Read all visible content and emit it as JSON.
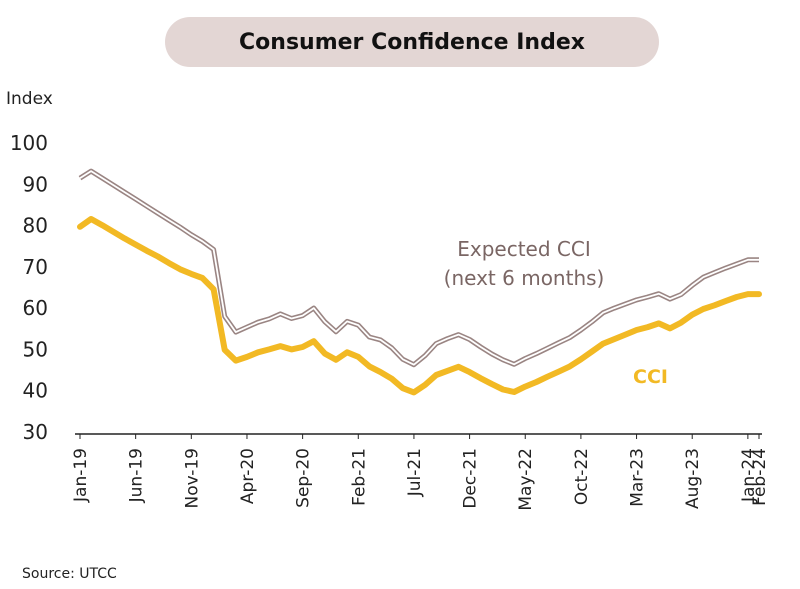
{
  "chart_data": {
    "type": "line",
    "title": "Consumer Confidence Index",
    "ylabel": "Index",
    "xlabel": "",
    "ylim": [
      30,
      100
    ],
    "yticks": [
      30,
      40,
      50,
      60,
      70,
      80,
      90,
      100
    ],
    "grid": false,
    "x_tick_labels": [
      "Jan-19",
      "Jun-19",
      "Nov-19",
      "Apr-20",
      "Sep-20",
      "Feb-21",
      "Jul-21",
      "Dec-21",
      "May-22",
      "Oct-22",
      "Mar-23",
      "Aug-23",
      "Jan-24",
      "Feb-24"
    ],
    "x_tick_index": [
      0,
      5,
      10,
      15,
      20,
      25,
      30,
      35,
      40,
      45,
      50,
      55,
      60,
      61
    ],
    "x": [
      "Jan-19",
      "Feb-19",
      "Mar-19",
      "Apr-19",
      "May-19",
      "Jun-19",
      "Jul-19",
      "Aug-19",
      "Sep-19",
      "Oct-19",
      "Nov-19",
      "Dec-19",
      "Jan-20",
      "Feb-20",
      "Mar-20",
      "Apr-20",
      "May-20",
      "Jun-20",
      "Jul-20",
      "Aug-20",
      "Sep-20",
      "Oct-20",
      "Nov-20",
      "Dec-20",
      "Jan-21",
      "Feb-21",
      "Mar-21",
      "Apr-21",
      "May-21",
      "Jun-21",
      "Jul-21",
      "Aug-21",
      "Sep-21",
      "Oct-21",
      "Nov-21",
      "Dec-21",
      "Jan-22",
      "Feb-22",
      "Mar-22",
      "Apr-22",
      "May-22",
      "Jun-22",
      "Jul-22",
      "Aug-22",
      "Sep-22",
      "Oct-22",
      "Nov-22",
      "Dec-22",
      "Jan-23",
      "Feb-23",
      "Mar-23",
      "Apr-23",
      "May-23",
      "Jun-23",
      "Jul-23",
      "Aug-23",
      "Sep-23",
      "Oct-23",
      "Nov-23",
      "Dec-23",
      "Jan-24",
      "Feb-24"
    ],
    "series": [
      {
        "name": "Expected CCI (next 6 months)",
        "color": "#9a8583",
        "values": [
          91.5,
          93.2,
          91.5,
          89.8,
          88.1,
          86.4,
          84.7,
          83.0,
          81.3,
          79.6,
          77.8,
          76.2,
          74.2,
          58.0,
          54.2,
          55.4,
          56.6,
          57.4,
          58.6,
          57.5,
          58.2,
          60.0,
          56.7,
          54.3,
          56.8,
          55.9,
          53.0,
          52.3,
          50.4,
          47.6,
          46.3,
          48.5,
          51.4,
          52.6,
          53.6,
          52.4,
          50.6,
          48.9,
          47.5,
          46.4,
          47.8,
          49.0,
          50.3,
          51.6,
          52.9,
          54.7,
          56.7,
          58.9,
          60.0,
          61.0,
          62.0,
          62.7,
          63.5,
          62.2,
          63.3,
          65.5,
          67.5,
          68.6,
          69.7,
          70.7,
          71.7,
          71.7
        ]
      },
      {
        "name": "CCI",
        "color": "#f2b924",
        "values": [
          79.7,
          81.6,
          80.1,
          78.5,
          76.9,
          75.4,
          73.9,
          72.5,
          70.9,
          69.4,
          68.3,
          67.3,
          64.6,
          49.9,
          47.3,
          48.2,
          49.3,
          50.0,
          50.8,
          50.0,
          50.6,
          52.0,
          49.0,
          47.5,
          49.3,
          48.2,
          45.9,
          44.5,
          42.9,
          40.6,
          39.6,
          41.4,
          43.8,
          44.8,
          45.8,
          44.5,
          43.0,
          41.6,
          40.3,
          39.7,
          41.0,
          42.1,
          43.4,
          44.6,
          45.9,
          47.6,
          49.5,
          51.4,
          52.5,
          53.6,
          54.7,
          55.4,
          56.3,
          55.1,
          56.5,
          58.4,
          59.8,
          60.7,
          61.7,
          62.7,
          63.4,
          63.4
        ]
      }
    ],
    "annotations": [
      {
        "text_lines": [
          "Expected CCI",
          "(next 6 months)"
        ],
        "series": "Expected CCI (next 6 months)"
      },
      {
        "text": "CCI",
        "series": "CCI"
      }
    ]
  },
  "source": "Source: UTCC"
}
